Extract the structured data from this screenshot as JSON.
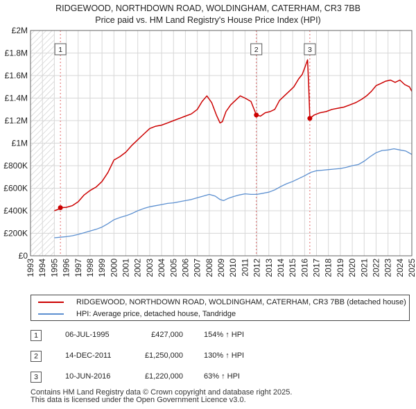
{
  "title_line1": "RIDGEWOOD, NORTHDOWN ROAD, WOLDINGHAM, CATERHAM, CR3 7BB",
  "title_line2": "Price paid vs. HM Land Registry's House Price Index (HPI)",
  "colors": {
    "property": "#cc0000",
    "hpi": "#5b8fd0",
    "grid": "#d7d7d7",
    "hatch": "#c8c8c8",
    "marker_line": "#e06666"
  },
  "legend": {
    "property_label": "RIDGEWOOD, NORTHDOWN ROAD, WOLDINGHAM, CATERHAM, CR3 7BB (detached house)",
    "hpi_label": "HPI: Average price, detached house, Tandridge"
  },
  "sales": [
    {
      "num": "1",
      "date": "06-JUL-1995",
      "price": "£427,000",
      "hpi": "154% ↑ HPI"
    },
    {
      "num": "2",
      "date": "14-DEC-2011",
      "price": "£1,250,000",
      "hpi": "130% ↑ HPI"
    },
    {
      "num": "3",
      "date": "10-JUN-2016",
      "price": "£1,220,000",
      "hpi": "63% ↑ HPI"
    }
  ],
  "footer_line1": "Contains HM Land Registry data © Crown copyright and database right 2025.",
  "footer_line2": "This data is licensed under the Open Government Licence v3.0.",
  "chart_data": {
    "type": "line",
    "xlim": [
      1993,
      2025
    ],
    "ylim": [
      0,
      2000000
    ],
    "y_ticks": [
      {
        "value": 0,
        "label": "£0"
      },
      {
        "value": 200000,
        "label": "£200K"
      },
      {
        "value": 400000,
        "label": "£400K"
      },
      {
        "value": 600000,
        "label": "£600K"
      },
      {
        "value": 800000,
        "label": "£800K"
      },
      {
        "value": 1000000,
        "label": "£1M"
      },
      {
        "value": 1200000,
        "label": "£1.2M"
      },
      {
        "value": 1400000,
        "label": "£1.4M"
      },
      {
        "value": 1600000,
        "label": "£1.6M"
      },
      {
        "value": 1800000,
        "label": "£1.8M"
      },
      {
        "value": 2000000,
        "label": "£2M"
      }
    ],
    "x_ticks": [
      "1993",
      "1994",
      "1995",
      "1996",
      "1997",
      "1998",
      "1999",
      "2000",
      "2001",
      "2002",
      "2003",
      "2004",
      "2005",
      "2006",
      "2007",
      "2008",
      "2009",
      "2010",
      "2011",
      "2012",
      "2013",
      "2014",
      "2015",
      "2016",
      "2017",
      "2018",
      "2019",
      "2020",
      "2021",
      "2022",
      "2023",
      "2024",
      "2025"
    ],
    "hatched_before": 1995.0,
    "sale_markers": [
      {
        "label": "1",
        "x": 1995.51,
        "value": 427000
      },
      {
        "label": "2",
        "x": 2011.95,
        "value": 1250000
      },
      {
        "label": "3",
        "x": 2016.44,
        "value": 1220000
      }
    ],
    "series": [
      {
        "name": "RIDGEWOOD, NORTHDOWN ROAD, WOLDINGHAM, CATERHAM, CR3 7BB (detached house)",
        "x": [
          1995.0,
          1995.5,
          1995.51,
          1996.0,
          1996.5,
          1997.0,
          1997.5,
          1998.0,
          1998.5,
          1999.0,
          1999.5,
          2000.0,
          2000.5,
          2001.0,
          2001.5,
          2002.0,
          2002.5,
          2003.0,
          2003.5,
          2004.0,
          2004.5,
          2005.0,
          2005.5,
          2006.0,
          2006.5,
          2007.0,
          2007.4,
          2007.8,
          2008.2,
          2008.6,
          2008.9,
          2009.1,
          2009.4,
          2009.8,
          2010.2,
          2010.6,
          2011.0,
          2011.5,
          2011.95,
          2012.3,
          2012.7,
          2013.1,
          2013.5,
          2013.9,
          2014.3,
          2014.7,
          2015.1,
          2015.5,
          2015.8,
          2016.05,
          2016.25,
          2016.35,
          2016.44,
          2016.8,
          2017.3,
          2017.8,
          2018.3,
          2018.8,
          2019.3,
          2019.8,
          2020.3,
          2020.8,
          2021.2,
          2021.6,
          2022.0,
          2022.4,
          2022.8,
          2023.2,
          2023.6,
          2024.0,
          2024.4,
          2024.8,
          2025.0
        ],
        "values": [
          400000,
          420000,
          427000,
          430000,
          445000,
          480000,
          540000,
          580000,
          610000,
          660000,
          740000,
          850000,
          880000,
          920000,
          980000,
          1030000,
          1080000,
          1130000,
          1150000,
          1160000,
          1180000,
          1200000,
          1220000,
          1240000,
          1260000,
          1300000,
          1370000,
          1420000,
          1360000,
          1250000,
          1180000,
          1190000,
          1280000,
          1340000,
          1380000,
          1420000,
          1400000,
          1370000,
          1250000,
          1240000,
          1270000,
          1280000,
          1300000,
          1380000,
          1420000,
          1460000,
          1500000,
          1570000,
          1610000,
          1680000,
          1740000,
          1500000,
          1220000,
          1250000,
          1270000,
          1280000,
          1300000,
          1310000,
          1320000,
          1340000,
          1360000,
          1390000,
          1420000,
          1460000,
          1510000,
          1530000,
          1550000,
          1560000,
          1540000,
          1560000,
          1520000,
          1500000,
          1460000
        ]
      },
      {
        "name": "HPI: Average price, detached house, Tandridge",
        "x": [
          1995.0,
          1995.5,
          1996.0,
          1996.5,
          1997.0,
          1997.5,
          1998.0,
          1998.5,
          1999.0,
          1999.5,
          2000.0,
          2000.5,
          2001.0,
          2001.5,
          2002.0,
          2002.5,
          2003.0,
          2003.5,
          2004.0,
          2004.5,
          2005.0,
          2005.5,
          2006.0,
          2006.5,
          2007.0,
          2007.5,
          2008.0,
          2008.5,
          2008.9,
          2009.2,
          2009.6,
          2010.0,
          2010.5,
          2011.0,
          2011.5,
          2012.0,
          2012.5,
          2013.0,
          2013.5,
          2014.0,
          2014.5,
          2015.0,
          2015.5,
          2016.0,
          2016.5,
          2017.0,
          2017.5,
          2018.0,
          2018.5,
          2019.0,
          2019.5,
          2020.0,
          2020.5,
          2021.0,
          2021.5,
          2022.0,
          2022.5,
          2023.0,
          2023.5,
          2024.0,
          2024.5,
          2025.0
        ],
        "values": [
          160000,
          165000,
          170000,
          178000,
          190000,
          205000,
          220000,
          235000,
          255000,
          285000,
          320000,
          340000,
          355000,
          375000,
          400000,
          420000,
          435000,
          445000,
          455000,
          465000,
          470000,
          480000,
          490000,
          500000,
          515000,
          530000,
          545000,
          530000,
          500000,
          490000,
          510000,
          525000,
          540000,
          550000,
          545000,
          545000,
          555000,
          565000,
          585000,
          615000,
          640000,
          660000,
          685000,
          710000,
          740000,
          755000,
          760000,
          765000,
          770000,
          775000,
          785000,
          800000,
          810000,
          840000,
          880000,
          915000,
          935000,
          940000,
          950000,
          940000,
          930000,
          900000
        ]
      }
    ]
  }
}
